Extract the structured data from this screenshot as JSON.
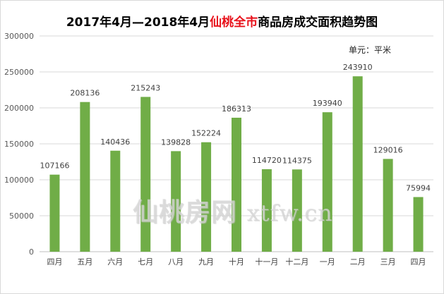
{
  "chart_data": {
    "type": "bar",
    "title_prefix": "2017年4月—2018年4月",
    "title_highlight": "仙桃全市",
    "title_suffix": "商品房成交面积趋势图",
    "unit_label": "单元：平米",
    "categories": [
      "四月",
      "五月",
      "六月",
      "七月",
      "八月",
      "九月",
      "十月",
      "十一月",
      "十二月",
      "一月",
      "二月",
      "三月",
      "四月"
    ],
    "values": [
      107166,
      208136,
      140436,
      215243,
      139828,
      152224,
      186313,
      114720,
      114375,
      193940,
      243910,
      129016,
      75994
    ],
    "ylim": [
      0,
      300000
    ],
    "yticks": [
      "0",
      "50000",
      "100000",
      "150000",
      "200000",
      "250000",
      "300000"
    ],
    "grid": true,
    "legend": "none",
    "bar_color": "#70ad47",
    "grid_color": "#d9d9d9"
  },
  "watermark": {
    "cn": "仙桃房网",
    "domain": "xtfw.cn"
  }
}
